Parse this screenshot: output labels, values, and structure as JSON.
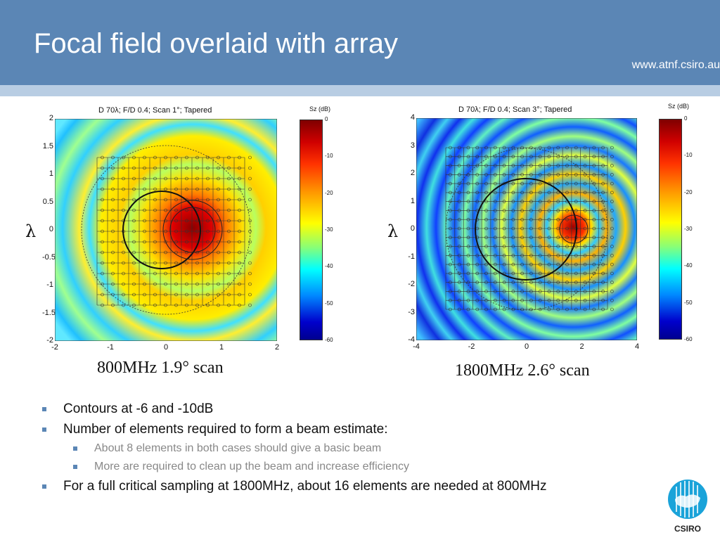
{
  "slide": {
    "title": "Focal field overlaid with array",
    "url": "www.atnf.csiro.au",
    "bullets": [
      {
        "level": 1,
        "text": "Contours at -6 and -10dB"
      },
      {
        "level": 1,
        "text": "Number of elements required to form a beam estimate:"
      },
      {
        "level": 2,
        "text": "About 8 elements in both cases should give a basic beam"
      },
      {
        "level": 2,
        "text": "More are required to clean up the beam and increase efficiency"
      },
      {
        "level": 1,
        "text": "For a full critical sampling at 1800MHz, about 16 elements are needed at 800MHz"
      }
    ],
    "logo_text": "CSIRO"
  },
  "plots": [
    {
      "title": "D 70λ;  F/D 0.4; Scan 1°; Tapered",
      "ylabel": "λ",
      "caption": "800MHz 1.9° scan",
      "xticks": [
        "-2",
        "-1",
        "0",
        "1",
        "2"
      ],
      "yticks": [
        "2",
        "1.5",
        "1",
        "0.5",
        "0",
        "-0.5",
        "-1",
        "-1.5",
        "-2"
      ],
      "colorbar_title": "Sz (dB)",
      "colorbar_ticks": [
        "0",
        "-10",
        "-20",
        "-30",
        "-40",
        "-50",
        "-60"
      ]
    },
    {
      "title": "D 70λ;  F/D 0.4; Scan 3°; Tapered",
      "ylabel": "λ",
      "caption": "1800MHz 2.6° scan",
      "xticks": [
        "-4",
        "-2",
        "0",
        "2",
        "4"
      ],
      "yticks": [
        "4",
        "3",
        "2",
        "1",
        "0",
        "-1",
        "-2",
        "-3",
        "-4"
      ],
      "colorbar_title": "Sz (dB)",
      "colorbar_ticks": [
        "0",
        "-10",
        "-20",
        "-30",
        "-40",
        "-50",
        "-60"
      ]
    }
  ],
  "colors": {
    "header": "#5b86b5",
    "strip": "#b8cde3",
    "bullet": "#5b86b5"
  }
}
